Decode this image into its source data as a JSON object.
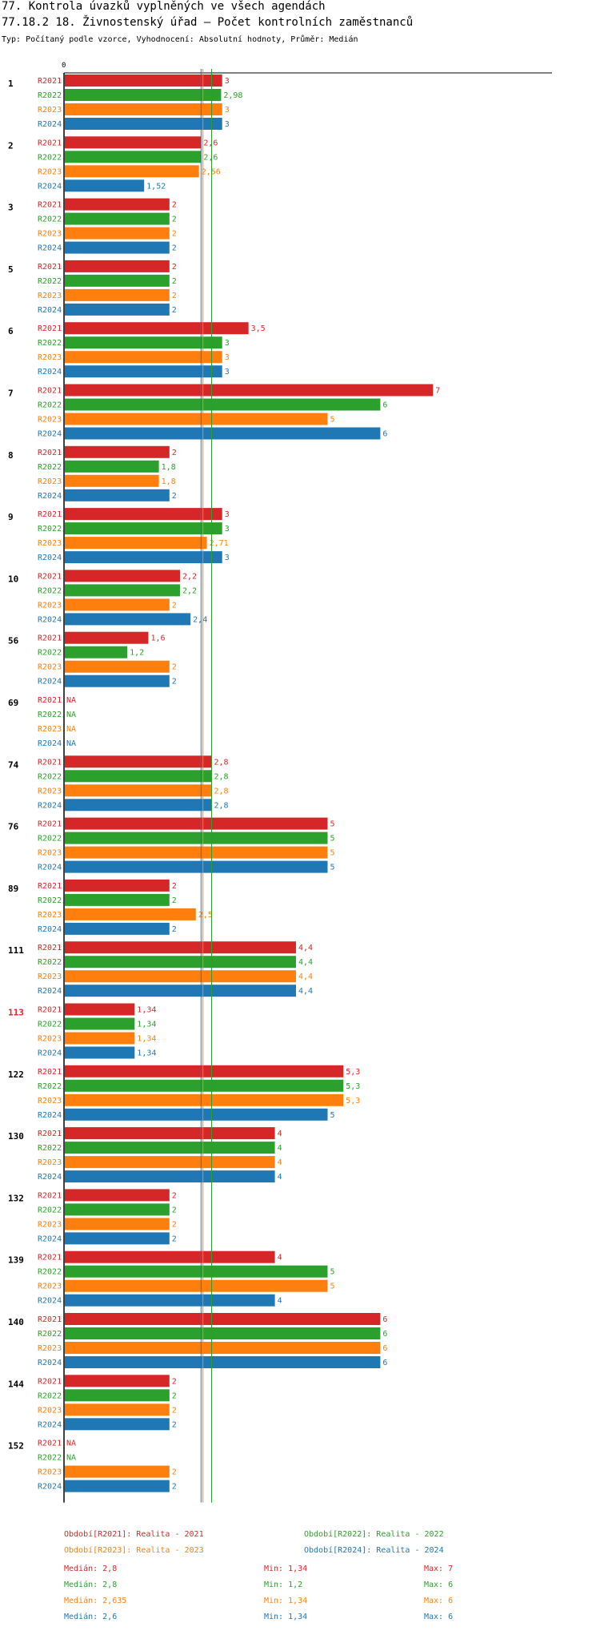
{
  "header": {
    "title": "77. Kontrola úvazků vyplněných ve všech agendách",
    "subtitle": "77.18.2 18. Živnostenský úřad – Počet kontrolních zaměstnanců",
    "type_line": "Typ: Počítaný podle vzorce, Vyhodnocení: Absolutní hodnoty, Průměr: Medián"
  },
  "chart_data": {
    "type": "bar",
    "orientation": "horizontal",
    "title": "77.18.2 18. Živnostenský úřad – Počet kontrolních zaměstnanců",
    "xlim": [
      0,
      7
    ],
    "axis_tick_label": "0",
    "categories": [
      "1",
      "2",
      "3",
      "5",
      "6",
      "7",
      "8",
      "9",
      "10",
      "56",
      "69",
      "74",
      "76",
      "89",
      "111",
      "113",
      "122",
      "130",
      "132",
      "139",
      "140",
      "144",
      "152"
    ],
    "highlighted_category": "113",
    "series": [
      {
        "name": "R2021",
        "color": "#d62728",
        "values": [
          3,
          2.6,
          2,
          2,
          3.5,
          7,
          2,
          3,
          2.2,
          1.6,
          null,
          2.8,
          5,
          2,
          4.4,
          1.34,
          5.3,
          4,
          2,
          4,
          6,
          2,
          null
        ],
        "labels": [
          "3",
          "2,6",
          "2",
          "2",
          "3,5",
          "7",
          "2",
          "3",
          "2,2",
          "1,6",
          "NA",
          "2,8",
          "5",
          "2",
          "4,4",
          "1,34",
          "5,3",
          "4",
          "2",
          "4",
          "6",
          "2",
          "NA"
        ]
      },
      {
        "name": "R2022",
        "color": "#2ca02c",
        "values": [
          2.98,
          2.6,
          2,
          2,
          3,
          6,
          1.8,
          3,
          2.2,
          1.2,
          null,
          2.8,
          5,
          2,
          4.4,
          1.34,
          5.3,
          4,
          2,
          5,
          6,
          2,
          null
        ],
        "labels": [
          "2,98",
          "2,6",
          "2",
          "2",
          "3",
          "6",
          "1,8",
          "3",
          "2,2",
          "1,2",
          "NA",
          "2,8",
          "5",
          "2",
          "4,4",
          "1,34",
          "5,3",
          "4",
          "2",
          "5",
          "6",
          "2",
          "NA"
        ]
      },
      {
        "name": "R2023",
        "color": "#ff7f0e",
        "values": [
          3,
          2.56,
          2,
          2,
          3,
          5,
          1.8,
          2.71,
          2,
          2,
          null,
          2.8,
          5,
          2.5,
          4.4,
          1.34,
          5.3,
          4,
          2,
          5,
          6,
          2,
          2
        ],
        "labels": [
          "3",
          "2,56",
          "2",
          "2",
          "3",
          "5",
          "1,8",
          "2,71",
          "2",
          "2",
          "NA",
          "2,8",
          "5",
          "2,5",
          "4,4",
          "1,34",
          "5,3",
          "4",
          "2",
          "5",
          "6",
          "2",
          "2"
        ]
      },
      {
        "name": "R2024",
        "color": "#1f77b4",
        "values": [
          3,
          1.52,
          2,
          2,
          3,
          6,
          2,
          3,
          2.4,
          2,
          null,
          2.8,
          5,
          2,
          4.4,
          1.34,
          5,
          4,
          2,
          4,
          6,
          2,
          2
        ],
        "labels": [
          "3",
          "1,52",
          "2",
          "2",
          "3",
          "6",
          "2",
          "3",
          "2,4",
          "2",
          "NA",
          "2,8",
          "5",
          "2",
          "4,4",
          "1,34",
          "5",
          "4",
          "2",
          "4",
          "6",
          "2",
          "2"
        ]
      }
    ],
    "median_lines": [
      {
        "series": "R2021",
        "value": 2.8,
        "color": "#d62728"
      },
      {
        "series": "R2022",
        "value": 2.8,
        "color": "#2ca02c"
      },
      {
        "series": "R2023",
        "value": 2.635,
        "color": "#ff7f0e"
      },
      {
        "series": "R2024",
        "value": 2.6,
        "color": "#1f77b4"
      }
    ],
    "legend": [
      {
        "text": "Období[R2021]: Realita - 2021",
        "color": "#d62728"
      },
      {
        "text": "Období[R2022]: Realita - 2022",
        "color": "#2ca02c"
      },
      {
        "text": "Období[R2023]: Realita - 2023",
        "color": "#ff7f0e"
      },
      {
        "text": "Období[R2024]: Realita - 2024",
        "color": "#1f77b4"
      }
    ],
    "stats": [
      {
        "median": "Medián: 2,8",
        "min": "Min: 1,34",
        "max": "Max: 7",
        "color": "#d62728"
      },
      {
        "median": "Medián: 2,8",
        "min": "Min: 1,2",
        "max": "Max: 6",
        "color": "#2ca02c"
      },
      {
        "median": "Medián: 2,635",
        "min": "Min: 1,34",
        "max": "Max: 6",
        "color": "#ff7f0e"
      },
      {
        "median": "Medián: 2,6",
        "min": "Min: 1,34",
        "max": "Max: 6",
        "color": "#1f77b4"
      }
    ]
  }
}
